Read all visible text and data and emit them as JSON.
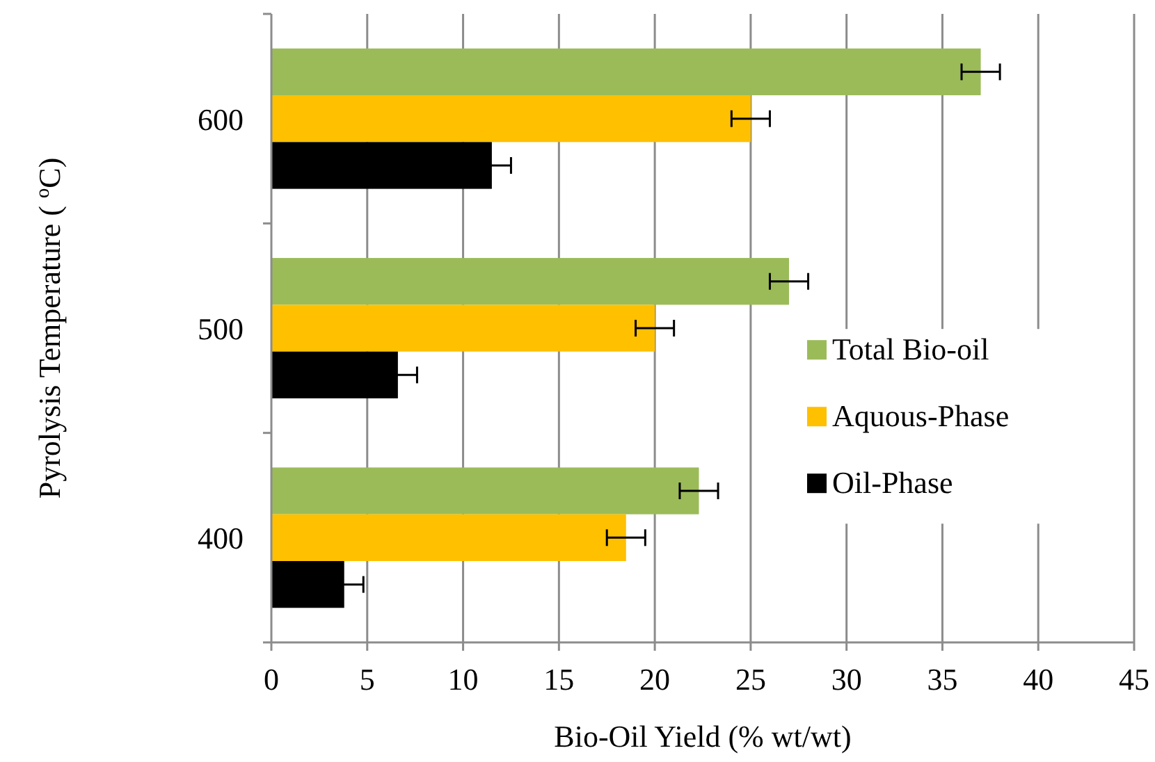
{
  "chart_data": {
    "type": "bar",
    "orientation": "horizontal",
    "categories": [
      "600",
      "500",
      "400"
    ],
    "xlabel": "Bio-Oil Yield (% wt/wt)",
    "ylabel": "Pyrolysis Temperature ( $^{o}$C)",
    "series": [
      {
        "name": "Total Bio-oil",
        "color": "#9bbb59",
        "values": [
          37.0,
          27.0,
          22.3
        ],
        "errors": [
          1,
          1,
          1
        ]
      },
      {
        "name": "Aquous-Phase",
        "color": "#ffc000",
        "values": [
          25.0,
          20.0,
          18.5
        ],
        "errors": [
          1,
          1,
          1
        ]
      },
      {
        "name": "Oil-Phase",
        "color": "#000000",
        "values": [
          11.5,
          6.6,
          3.8
        ],
        "errors": [
          1,
          1,
          1
        ]
      }
    ],
    "xlim": [
      0,
      45
    ],
    "xticks": [
      0,
      5,
      10,
      15,
      20,
      25,
      30,
      35,
      40,
      45
    ],
    "grid": "x",
    "legend": "right"
  }
}
